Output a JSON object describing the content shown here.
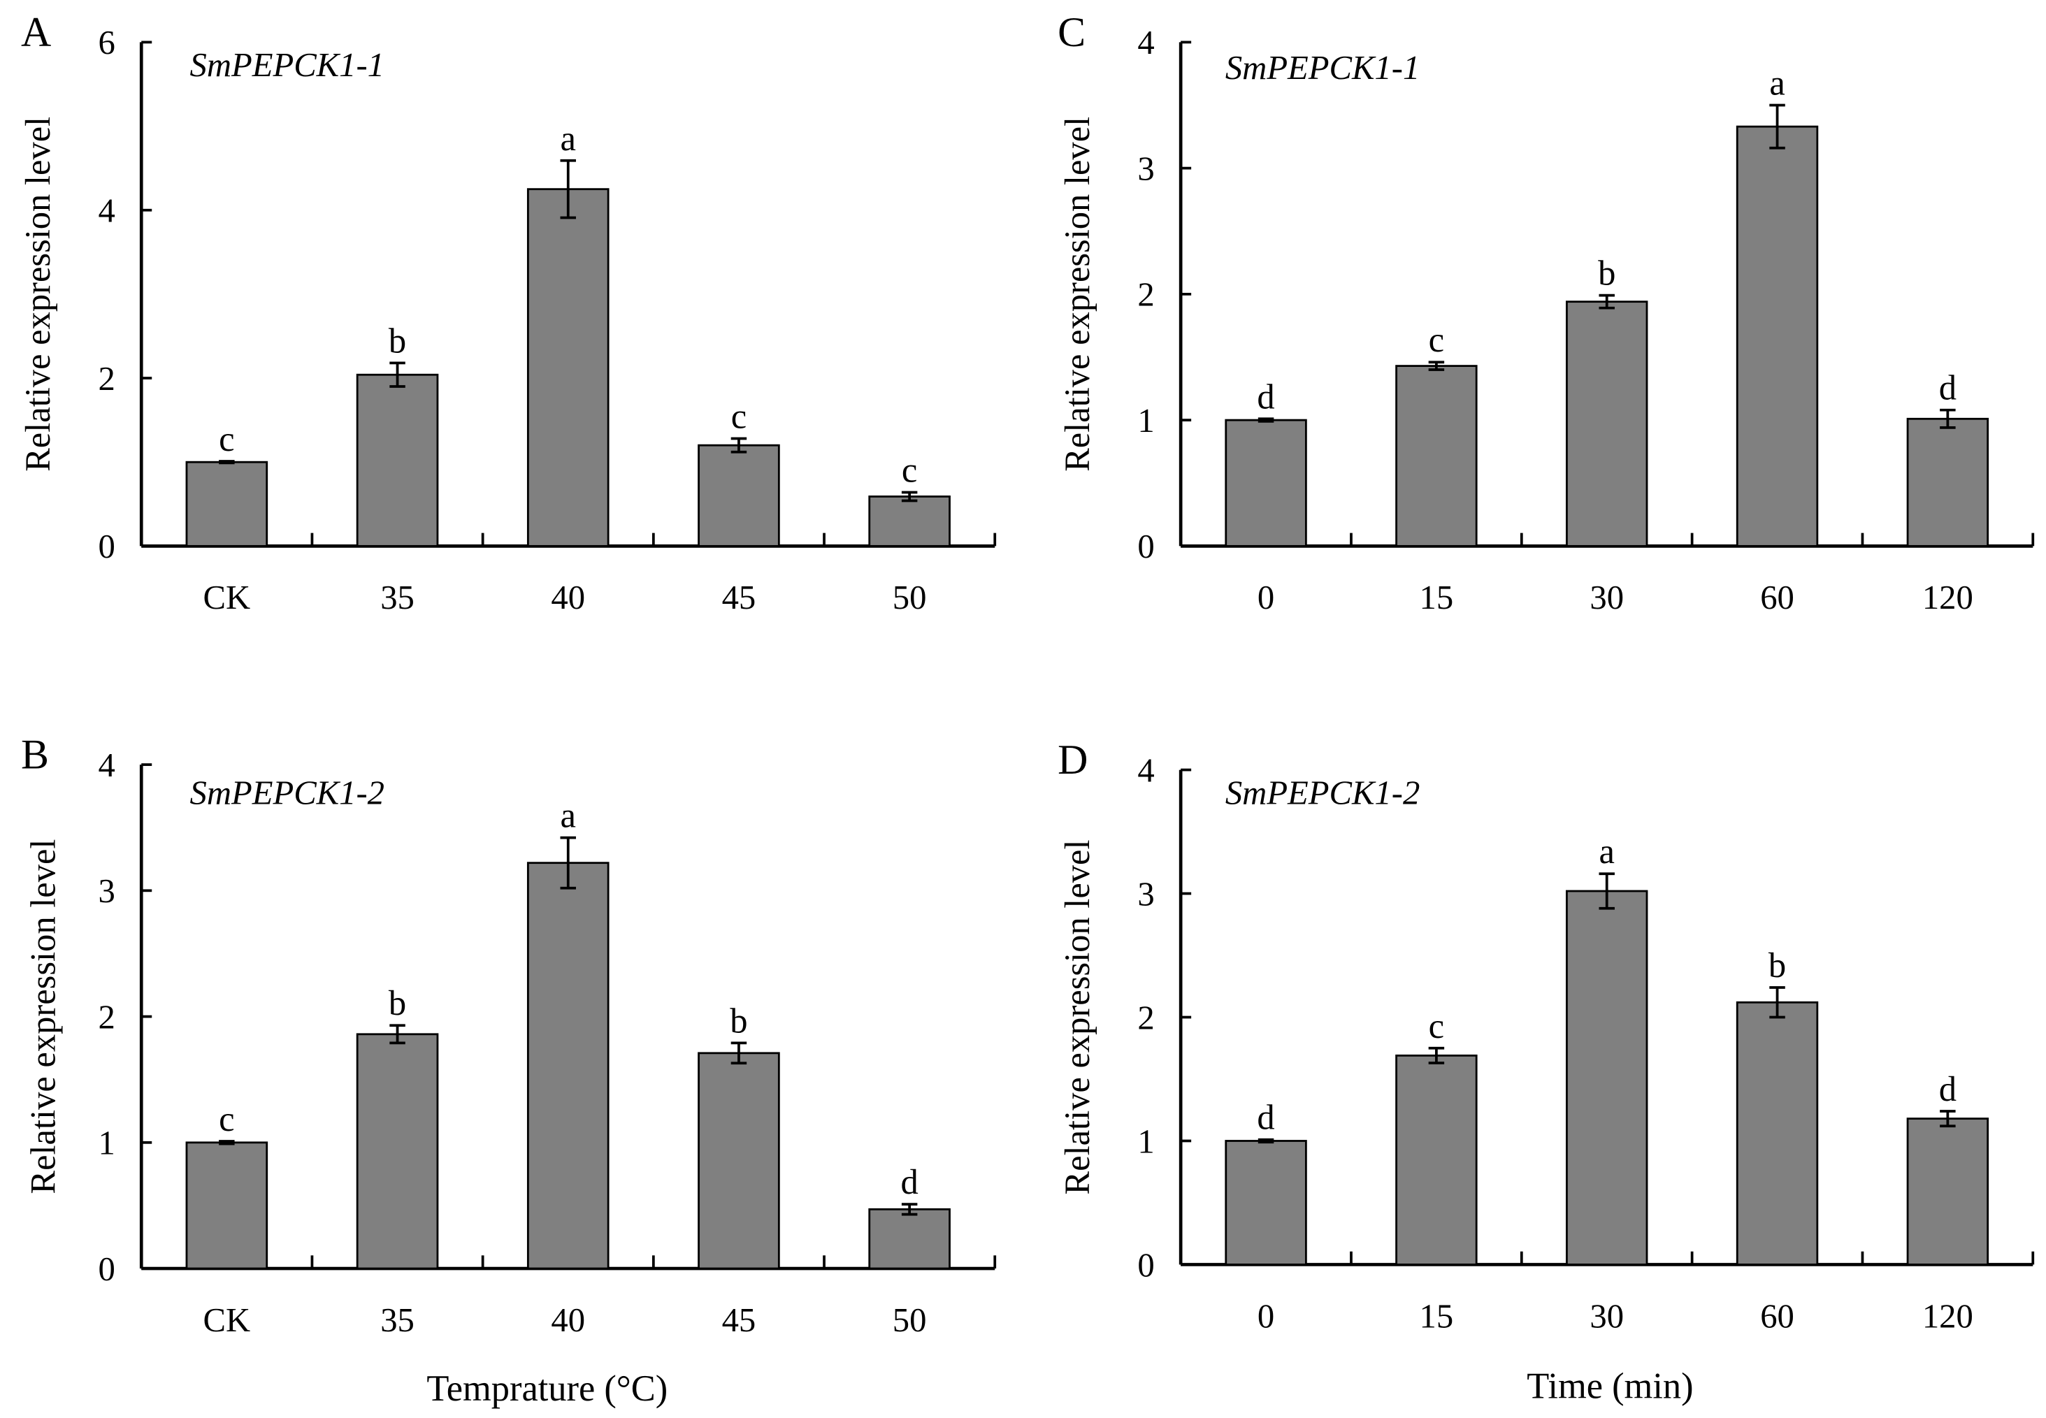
{
  "chart_data": [
    {
      "panel": "A",
      "type": "bar",
      "gene": "SmPEPCK1-1",
      "ylabel": "Relative expression level",
      "categories": [
        "CK",
        "35",
        "40",
        "45",
        "50"
      ],
      "values": [
        1.0,
        2.04,
        4.25,
        1.2,
        0.59
      ],
      "errors": [
        0.01,
        0.14,
        0.34,
        0.08,
        0.05
      ],
      "significance": [
        "c",
        "b",
        "a",
        "c",
        "c"
      ],
      "ylim": [
        0,
        6
      ],
      "yticks": [
        "0",
        "2",
        "4",
        "6"
      ],
      "bar_color": "#808080",
      "grid": false
    },
    {
      "panel": "B",
      "type": "bar",
      "gene": "SmPEPCK1-2",
      "ylabel": "Relative expression level",
      "categories": [
        "CK",
        "35",
        "40",
        "45",
        "50"
      ],
      "values": [
        1.0,
        1.86,
        3.22,
        1.71,
        0.47
      ],
      "errors": [
        0.01,
        0.07,
        0.2,
        0.08,
        0.04
      ],
      "significance": [
        "c",
        "b",
        "a",
        "b",
        "d"
      ],
      "ylim": [
        0,
        4
      ],
      "yticks": [
        "0",
        "1",
        "2",
        "3",
        "4"
      ],
      "bar_color": "#808080",
      "grid": false
    },
    {
      "panel": "C",
      "type": "bar",
      "gene": "SmPEPCK1-1",
      "ylabel": "Relative expression level",
      "categories": [
        "0",
        "15",
        "30",
        "60",
        "120"
      ],
      "values": [
        1.0,
        1.43,
        1.94,
        3.33,
        1.01
      ],
      "errors": [
        0.01,
        0.03,
        0.05,
        0.17,
        0.07
      ],
      "significance": [
        "d",
        "c",
        "b",
        "a",
        "d"
      ],
      "ylim": [
        0,
        4
      ],
      "yticks": [
        "0",
        "1",
        "2",
        "3",
        "4"
      ],
      "bar_color": "#808080",
      "grid": false
    },
    {
      "panel": "D",
      "type": "bar",
      "gene": "SmPEPCK1-2",
      "ylabel": "Relative expression level",
      "categories": [
        "0",
        "15",
        "30",
        "60",
        "120"
      ],
      "values": [
        1.0,
        1.69,
        3.02,
        2.12,
        1.18
      ],
      "errors": [
        0.01,
        0.06,
        0.14,
        0.12,
        0.06
      ],
      "significance": [
        "d",
        "c",
        "a",
        "b",
        "d"
      ],
      "ylim": [
        0,
        4
      ],
      "yticks": [
        "0",
        "1",
        "2",
        "3",
        "4"
      ],
      "bar_color": "#808080",
      "grid": false
    }
  ],
  "xtitles": {
    "left": "Temprature (°C)",
    "right": "Time (min)"
  }
}
